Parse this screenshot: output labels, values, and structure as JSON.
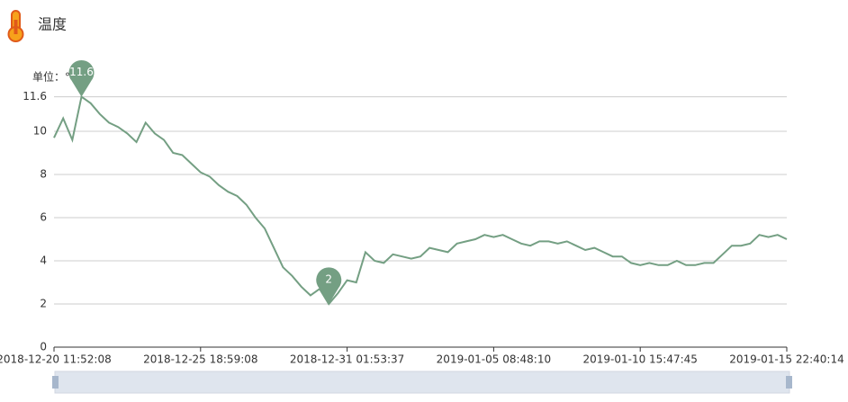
{
  "chart_data": {
    "type": "line",
    "title": "温度",
    "unit_label": "单位：℃",
    "categories": [
      "2018-12-20 11:52:08",
      null,
      null,
      null,
      null,
      null,
      null,
      null,
      null,
      null,
      null,
      null,
      null,
      null,
      null,
      null,
      "2018-12-25 18:59:08",
      null,
      null,
      null,
      null,
      null,
      null,
      null,
      null,
      null,
      null,
      null,
      null,
      null,
      null,
      null,
      "2018-12-31 01:53:37",
      null,
      null,
      null,
      null,
      null,
      null,
      null,
      null,
      null,
      null,
      null,
      null,
      null,
      null,
      null,
      "2019-01-05 08:48:10",
      null,
      null,
      null,
      null,
      null,
      null,
      null,
      null,
      null,
      null,
      null,
      null,
      null,
      null,
      null,
      "2019-01-10 15:47:45",
      null,
      null,
      null,
      null,
      null,
      null,
      null,
      null,
      null,
      null,
      null,
      null,
      null,
      null,
      null,
      "2019-01-15 22:40:14"
    ],
    "series": [
      {
        "color": "#749f83",
        "values": [
          9.7,
          10.6,
          9.6,
          11.6,
          11.3,
          10.8,
          10.4,
          10.2,
          9.9,
          9.5,
          10.4,
          9.9,
          9.6,
          9.0,
          8.9,
          8.5,
          8.1,
          7.9,
          7.5,
          7.2,
          7.0,
          6.6,
          6.0,
          5.5,
          4.6,
          3.7,
          3.3,
          2.8,
          2.4,
          2.7,
          2,
          2.5,
          3.1,
          3.0,
          4.4,
          4.0,
          3.9,
          4.3,
          4.2,
          4.1,
          4.2,
          4.6,
          4.5,
          4.4,
          4.8,
          4.9,
          5.0,
          5.2,
          5.1,
          5.2,
          5.0,
          4.8,
          4.7,
          4.9,
          4.9,
          4.8,
          4.9,
          4.7,
          4.5,
          4.6,
          4.4,
          4.2,
          4.2,
          3.9,
          3.8,
          3.9,
          3.8,
          3.8,
          4.0,
          3.8,
          3.8,
          3.9,
          3.9,
          4.3,
          4.7,
          4.7,
          4.8,
          5.2,
          5.1,
          5.2,
          5.0
        ]
      }
    ],
    "ylim": [
      0,
      11.6
    ],
    "yticks": [
      0,
      2,
      4,
      6,
      8,
      10,
      11.6
    ],
    "grid": true,
    "mark_points": [
      "max",
      "min"
    ]
  }
}
